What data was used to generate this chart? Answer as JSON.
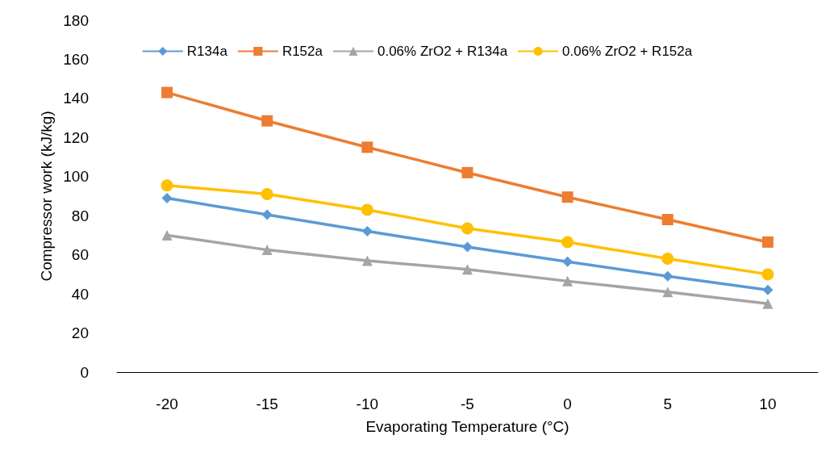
{
  "chart_data": {
    "type": "line",
    "xlabel": "Evaporating Temperature (°C)",
    "ylabel": "Compressor work (kJ/kg)",
    "categories": [
      "-20",
      "-15",
      "-10",
      "-5",
      "0",
      "5",
      "10"
    ],
    "ylim": [
      0,
      180
    ],
    "yticks": [
      0,
      20,
      40,
      60,
      80,
      100,
      120,
      140,
      160,
      180
    ],
    "grid": false,
    "legend": "top",
    "line_style": "solid",
    "series": [
      {
        "name": "R134a",
        "color": "#5b9bd5",
        "marker": "diamond",
        "values": [
          89,
          80.5,
          72,
          64,
          56.5,
          49,
          42
        ]
      },
      {
        "name": "R152a",
        "color": "#ed7d31",
        "marker": "square",
        "values": [
          143,
          128.5,
          115,
          102,
          89.5,
          78,
          66.5
        ]
      },
      {
        "name": "0.06% ZrO2 + R134a",
        "color": "#a5a5a5",
        "marker": "triangle",
        "values": [
          70,
          62.5,
          57,
          52.5,
          46.5,
          41,
          35
        ]
      },
      {
        "name": "0.06% ZrO2 + R152a",
        "color": "#ffc000",
        "marker": "circle",
        "values": [
          95.5,
          91,
          83,
          73.5,
          66.5,
          58,
          50
        ]
      }
    ]
  }
}
